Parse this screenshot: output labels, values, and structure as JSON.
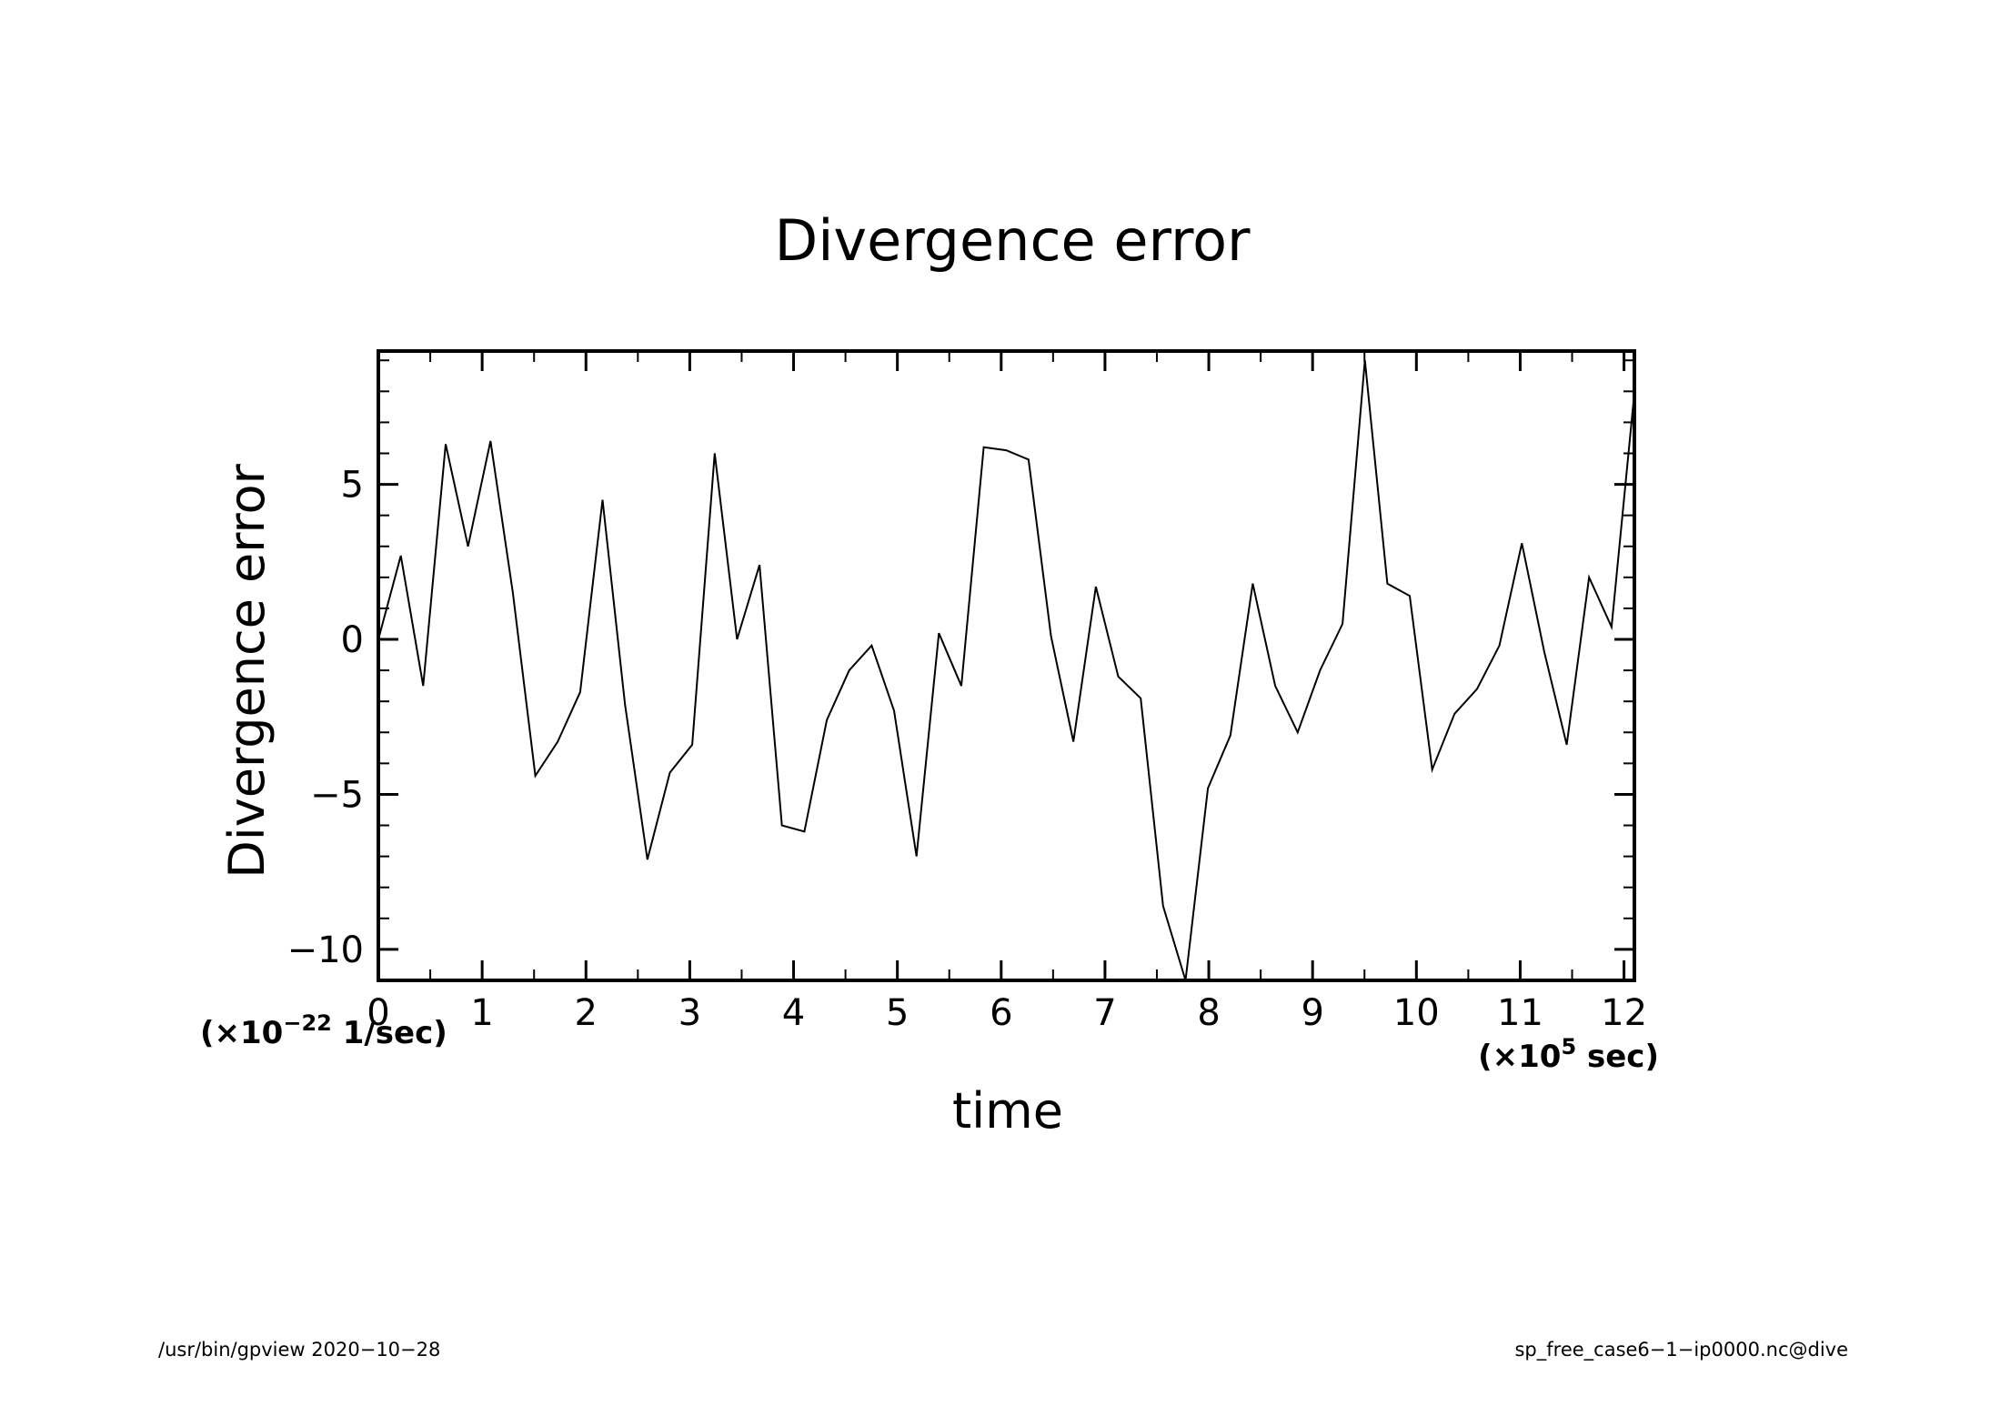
{
  "chart_data": {
    "type": "line",
    "title": "Divergence error",
    "xlabel": "time",
    "ylabel": "Divergence error",
    "x_scale_label": {
      "prefix": "(×10",
      "exponent": "5",
      "suffix": " sec)"
    },
    "y_scale_label": {
      "prefix": "(×10",
      "exponent": "−22",
      "suffix": " 1/sec)"
    },
    "xlim": [
      0,
      12.1
    ],
    "ylim": [
      -11,
      9.3
    ],
    "x_ticks": [
      0,
      1,
      2,
      3,
      4,
      5,
      6,
      7,
      8,
      9,
      10,
      11,
      12
    ],
    "x_tick_labels": [
      "0",
      "1",
      "2",
      "3",
      "4",
      "5",
      "6",
      "7",
      "8",
      "9",
      "10",
      "11",
      "12"
    ],
    "y_ticks": [
      -10,
      -5,
      0,
      5
    ],
    "y_tick_labels": [
      "−10",
      "−5",
      "0",
      "5"
    ],
    "grid": false,
    "series": [
      {
        "color": "#000000",
        "x": [
          0,
          0.216,
          0.432,
          0.648,
          0.864,
          1.08,
          1.296,
          1.512,
          1.728,
          1.944,
          2.16,
          2.376,
          2.592,
          2.808,
          3.024,
          3.24,
          3.456,
          3.672,
          3.888,
          4.104,
          4.32,
          4.536,
          4.752,
          4.968,
          5.184,
          5.4,
          5.616,
          5.832,
          6.048,
          6.264,
          6.48,
          6.696,
          6.912,
          7.128,
          7.344,
          7.56,
          7.776,
          7.992,
          8.208,
          8.424,
          8.64,
          8.856,
          9.072,
          9.288,
          9.504,
          9.72,
          9.936,
          10.152,
          10.368,
          10.584,
          10.8,
          11.016,
          11.232,
          11.448,
          11.664,
          11.88,
          12.096
        ],
        "y": [
          0,
          2.7,
          -1.5,
          6.3,
          3.0,
          6.4,
          1.5,
          -4.4,
          -3.3,
          -1.7,
          4.5,
          -2.1,
          -7.1,
          -4.3,
          -3.4,
          6.0,
          0.0,
          2.4,
          -6.0,
          -6.2,
          -2.6,
          -1.0,
          -0.2,
          -2.3,
          -7.0,
          0.2,
          -1.5,
          6.2,
          6.1,
          5.8,
          0.1,
          -3.3,
          1.7,
          -1.2,
          -1.9,
          -8.6,
          -11.0,
          -4.8,
          -3.1,
          1.8,
          -1.5,
          -3.0,
          -1.0,
          0.5,
          9.0,
          1.8,
          1.4,
          -4.2,
          -2.4,
          -1.6,
          -0.2,
          3.1,
          -0.4,
          -3.4,
          2.0,
          0.4,
          7.8
        ]
      }
    ]
  },
  "footer": {
    "left_text": "/usr/bin/gpview   2020−10−28",
    "right_text": "sp_free_case6−1−ip0000.nc@dive"
  }
}
